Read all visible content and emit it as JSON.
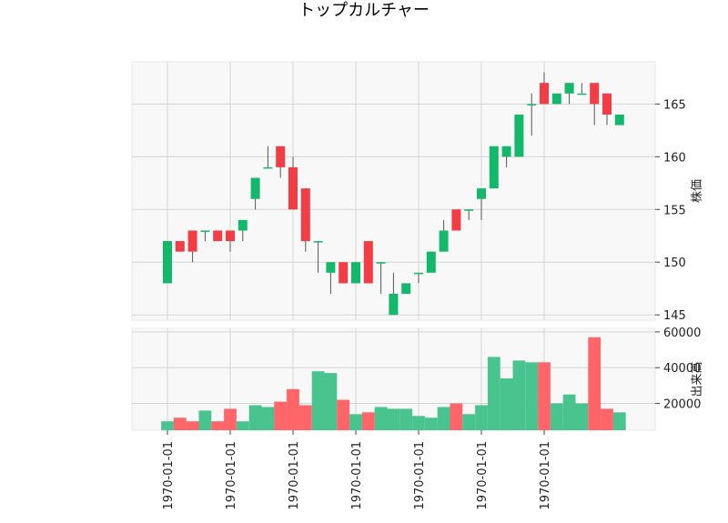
{
  "chart_data": {
    "type": "candlestick",
    "title": "トップカルチャー",
    "price_ylabel": "株価",
    "volume_ylabel": "出来高",
    "x_tick_labels": [
      "1970-01-01",
      "1970-01-01",
      "1970-01-01",
      "1970-01-01",
      "1970-01-01",
      "1970-01-01",
      "1970-01-01"
    ],
    "price_ylim": [
      144.5,
      169
    ],
    "price_ticks": [
      145,
      150,
      155,
      160,
      165
    ],
    "volume_ylim": [
      5000,
      62000
    ],
    "volume_ticks": [
      20000,
      40000,
      60000
    ],
    "colors": {
      "up": "#14b86a",
      "down": "#f33d45",
      "up_vol": "#4ac48e",
      "down_vol": "#ff6569",
      "wick": "#555555"
    },
    "candles": [
      {
        "o": 148,
        "h": 152,
        "l": 148,
        "c": 152,
        "v": 10000
      },
      {
        "o": 152,
        "h": 152,
        "l": 151,
        "c": 151,
        "v": 12000
      },
      {
        "o": 153,
        "h": 153,
        "l": 150,
        "c": 151,
        "v": 10000
      },
      {
        "o": 153,
        "h": 153,
        "l": 152,
        "c": 153,
        "v": 16000
      },
      {
        "o": 153,
        "h": 153,
        "l": 152,
        "c": 152,
        "v": 10000
      },
      {
        "o": 153,
        "h": 153,
        "l": 151,
        "c": 152,
        "v": 17000
      },
      {
        "o": 153,
        "h": 154,
        "l": 152,
        "c": 154,
        "v": 10000
      },
      {
        "o": 156,
        "h": 158,
        "l": 155,
        "c": 158,
        "v": 19000
      },
      {
        "o": 159,
        "h": 161,
        "l": 159,
        "c": 159,
        "v": 18000
      },
      {
        "o": 161,
        "h": 161,
        "l": 158,
        "c": 159,
        "v": 21000
      },
      {
        "o": 159,
        "h": 160,
        "l": 155,
        "c": 155,
        "v": 28000
      },
      {
        "o": 157,
        "h": 157,
        "l": 151,
        "c": 152,
        "v": 19000
      },
      {
        "o": 152,
        "h": 152,
        "l": 149,
        "c": 152,
        "v": 38000
      },
      {
        "o": 149,
        "h": 150,
        "l": 147,
        "c": 150,
        "v": 37000
      },
      {
        "o": 150,
        "h": 150,
        "l": 148,
        "c": 148,
        "v": 22000
      },
      {
        "o": 148,
        "h": 150,
        "l": 148,
        "c": 150,
        "v": 14000
      },
      {
        "o": 152,
        "h": 152,
        "l": 148,
        "c": 148,
        "v": 15000
      },
      {
        "o": 150,
        "h": 150,
        "l": 147,
        "c": 150,
        "v": 18000
      },
      {
        "o": 145,
        "h": 149,
        "l": 145,
        "c": 147,
        "v": 17000
      },
      {
        "o": 147,
        "h": 148,
        "l": 147,
        "c": 148,
        "v": 17000
      },
      {
        "o": 149,
        "h": 149,
        "l": 148,
        "c": 149,
        "v": 13000
      },
      {
        "o": 149,
        "h": 151,
        "l": 149,
        "c": 151,
        "v": 12000
      },
      {
        "o": 151,
        "h": 154,
        "l": 151,
        "c": 153,
        "v": 18000
      },
      {
        "o": 155,
        "h": 155,
        "l": 153,
        "c": 153,
        "v": 20000
      },
      {
        "o": 155,
        "h": 155,
        "l": 154,
        "c": 155,
        "v": 14000
      },
      {
        "o": 156,
        "h": 157,
        "l": 154,
        "c": 157,
        "v": 19000
      },
      {
        "o": 157,
        "h": 161,
        "l": 157,
        "c": 161,
        "v": 46000
      },
      {
        "o": 160,
        "h": 161,
        "l": 159,
        "c": 161,
        "v": 34000
      },
      {
        "o": 160,
        "h": 164,
        "l": 160,
        "c": 164,
        "v": 44000
      },
      {
        "o": 165,
        "h": 166,
        "l": 162,
        "c": 165,
        "v": 43000
      },
      {
        "o": 167,
        "h": 168,
        "l": 165,
        "c": 165,
        "v": 43000
      },
      {
        "o": 165,
        "h": 166,
        "l": 165,
        "c": 166,
        "v": 20000
      },
      {
        "o": 166,
        "h": 167,
        "l": 165,
        "c": 167,
        "v": 25000
      },
      {
        "o": 166,
        "h": 167,
        "l": 166,
        "c": 166,
        "v": 20000
      },
      {
        "o": 167,
        "h": 167,
        "l": 163,
        "c": 165,
        "v": 57000
      },
      {
        "o": 166,
        "h": 166,
        "l": 163,
        "c": 164,
        "v": 17000
      },
      {
        "o": 163,
        "h": 164,
        "l": 163,
        "c": 164,
        "v": 15000
      }
    ]
  }
}
